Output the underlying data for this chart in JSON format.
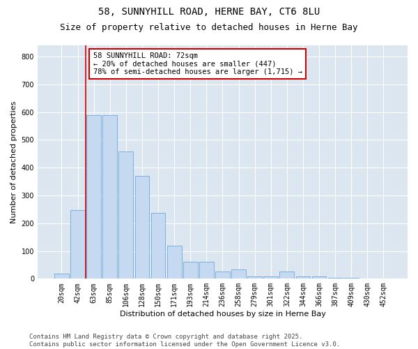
{
  "title_line1": "58, SUNNYHILL ROAD, HERNE BAY, CT6 8LU",
  "title_line2": "Size of property relative to detached houses in Herne Bay",
  "xlabel": "Distribution of detached houses by size in Herne Bay",
  "ylabel": "Number of detached properties",
  "bar_color": "#c5d9f1",
  "bar_edge_color": "#5b9bd5",
  "bg_color": "#dce6f1",
  "grid_color": "#ffffff",
  "categories": [
    "20sqm",
    "42sqm",
    "63sqm",
    "85sqm",
    "106sqm",
    "128sqm",
    "150sqm",
    "171sqm",
    "193sqm",
    "214sqm",
    "236sqm",
    "258sqm",
    "279sqm",
    "301sqm",
    "322sqm",
    "344sqm",
    "366sqm",
    "387sqm",
    "409sqm",
    "430sqm",
    "452sqm"
  ],
  "values": [
    18,
    248,
    590,
    590,
    457,
    370,
    237,
    120,
    62,
    62,
    25,
    33,
    8,
    8,
    25,
    8,
    8,
    4,
    4,
    2,
    2
  ],
  "vline_x": 1.5,
  "vline_color": "#cc0000",
  "annotation_text": "58 SUNNYHILL ROAD: 72sqm\n← 20% of detached houses are smaller (447)\n78% of semi-detached houses are larger (1,715) →",
  "annotation_box_facecolor": "#ffffff",
  "annotation_box_edgecolor": "#cc0000",
  "footer_line1": "Contains HM Land Registry data © Crown copyright and database right 2025.",
  "footer_line2": "Contains public sector information licensed under the Open Government Licence v3.0.",
  "ylim": [
    0,
    840
  ],
  "yticks": [
    0,
    100,
    200,
    300,
    400,
    500,
    600,
    700,
    800
  ],
  "title_fontsize": 10,
  "subtitle_fontsize": 9,
  "axis_label_fontsize": 8,
  "tick_fontsize": 7,
  "footer_fontsize": 6.5,
  "annotation_fontsize": 7.5,
  "ylabel_fontsize": 8
}
